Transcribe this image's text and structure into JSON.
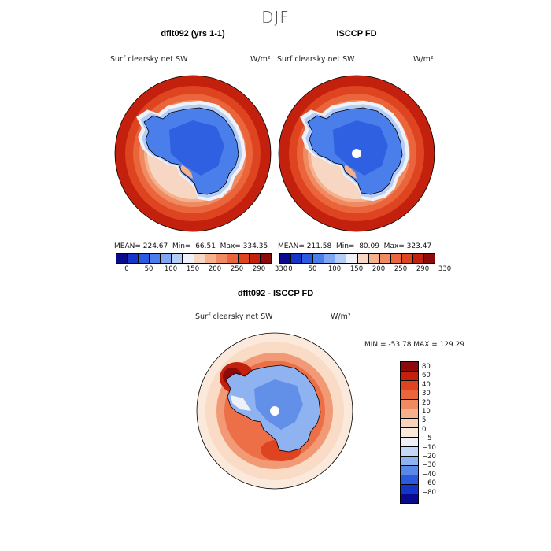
{
  "page": {
    "title": "DJF"
  },
  "panels": [
    {
      "title": "dflt092 (yrs 1-1)",
      "variable": "Surf clearsky net SW",
      "unit": "W/m²",
      "stats": "MEAN= 224.67  Min=  66.51  Max= 334.35"
    },
    {
      "title": "ISCCP FD",
      "variable": "Surf clearsky net SW",
      "unit": "W/m²",
      "stats": "MEAN= 211.58  Min=  80.09  Max= 323.47"
    },
    {
      "title": "dflt092 - ISCCP FD",
      "variable": "Surf clearsky net SW",
      "unit": "W/m²",
      "stats": "MIN = -53.78 MAX = 129.29"
    }
  ],
  "chart_data": [
    {
      "type": "heatmap",
      "title": "dflt092 (yrs 1-1)",
      "projection": "south polar stereographic",
      "variable": "Surf clearsky net SW",
      "units": "W/m2",
      "mean": 224.67,
      "min": 66.51,
      "max": 334.35,
      "colorbar_ticks": [
        "0",
        "50",
        "100",
        "150",
        "200",
        "250",
        "290",
        "330"
      ]
    },
    {
      "type": "heatmap",
      "title": "ISCCP FD",
      "projection": "south polar stereographic",
      "variable": "Surf clearsky net SW",
      "units": "W/m2",
      "mean": 211.58,
      "min": 80.09,
      "max": 323.47,
      "colorbar_ticks": [
        "0",
        "50",
        "100",
        "150",
        "200",
        "250",
        "290",
        "330"
      ]
    },
    {
      "type": "heatmap",
      "title": "dflt092 - ISCCP FD",
      "projection": "south polar stereographic",
      "variable": "Surf clearsky net SW",
      "units": "W/m2",
      "min": -53.78,
      "max": 129.29,
      "colorbar_ticks": [
        "80",
        "60",
        "40",
        "30",
        "20",
        "10",
        "5",
        "0",
        "−5",
        "−10",
        "−20",
        "−30",
        "−40",
        "−60",
        "−80"
      ]
    }
  ],
  "colors": {
    "abs_scale": [
      "#0a0a8c",
      "#1535c8",
      "#2a5ae0",
      "#4a7eea",
      "#7ea6f2",
      "#b4cdf6",
      "#eef2f8",
      "#f7d6c4",
      "#f5b08c",
      "#f08a60",
      "#ea643c",
      "#de4420",
      "#c4200e",
      "#8c0a0a"
    ],
    "diff_scale": [
      "#8c0a0a",
      "#c4200e",
      "#de4420",
      "#ea643c",
      "#f08a60",
      "#f5b08c",
      "#f8d4bc",
      "#fbe9dc",
      "#eef2f8",
      "#c4d8f6",
      "#8fb2f0",
      "#5a88e6",
      "#2a5ae0",
      "#1535c8",
      "#0a0a8c"
    ]
  }
}
